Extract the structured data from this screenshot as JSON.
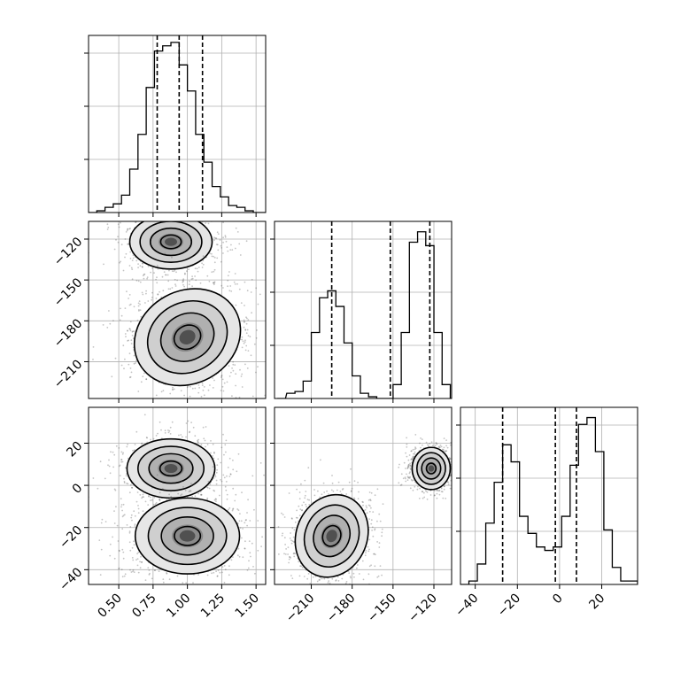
{
  "chart_data": [
    {
      "type": "histogram",
      "panel": "1d-param-0",
      "x": [
        0.28,
        0.34,
        0.4,
        0.46,
        0.52,
        0.58,
        0.64,
        0.7,
        0.76,
        0.82,
        0.88,
        0.94,
        1.0,
        1.06,
        1.12,
        1.18,
        1.24,
        1.3,
        1.36,
        1.42,
        1.48,
        1.54
      ],
      "values": [
        0,
        1,
        3,
        5,
        10,
        25,
        45,
        72,
        93,
        96,
        98,
        85,
        70,
        45,
        29,
        15,
        9,
        4,
        3,
        1,
        0,
        0
      ],
      "xlim": [
        0.28,
        1.57
      ],
      "ylim": [
        0,
        102
      ],
      "quantiles": [
        0.78,
        0.94,
        1.11
      ],
      "grid": true,
      "xticks": [],
      "yticks": []
    },
    {
      "type": "histogram",
      "panel": "1d-param-1",
      "x": [
        -235,
        -228,
        -222,
        -216,
        -210,
        -204,
        -198,
        -192,
        -186,
        -180,
        -174,
        -168,
        -162,
        -156,
        -150,
        -144,
        -138,
        -132,
        -126,
        -120,
        -114,
        -108
      ],
      "values": [
        0,
        3,
        4,
        10,
        38,
        58,
        62,
        53,
        32,
        13,
        3,
        1,
        0,
        0,
        8,
        38,
        90,
        96,
        88,
        38,
        8,
        0
      ],
      "xlim": [
        -237,
        -107
      ],
      "ylim": [
        0,
        102
      ],
      "quantiles": [
        -195,
        -152,
        -123
      ],
      "grid": true,
      "xticks": [],
      "yticks": []
    },
    {
      "type": "histogram",
      "panel": "1d-param-2",
      "x": [
        -47,
        -43,
        -39,
        -35,
        -31,
        -27,
        -23,
        -19,
        -15,
        -11,
        -7,
        -3,
        1,
        5,
        9,
        13,
        17,
        21,
        25,
        29,
        33,
        37
      ],
      "values": [
        0,
        1,
        6,
        18,
        30,
        41,
        36,
        20,
        15,
        11,
        10,
        11,
        20,
        35,
        47,
        49,
        39,
        16,
        5,
        1,
        1,
        0
      ],
      "xlim": [
        -47,
        37
      ],
      "ylim": [
        0,
        52
      ],
      "quantiles": [
        -27,
        -2,
        8
      ],
      "grid": true,
      "xticks": [
        "−40",
        "−20",
        "0",
        "20"
      ],
      "yticks": []
    },
    {
      "type": "contour",
      "panel": "2d-param-0-vs-param-1",
      "xlim": [
        0.28,
        1.57
      ],
      "ylim": [
        -237,
        -107
      ],
      "clusters": [
        {
          "center": [
            0.88,
            -122
          ],
          "spread": [
            0.15,
            10
          ],
          "rotation": 0,
          "density": "high"
        },
        {
          "center": [
            1.0,
            -192
          ],
          "spread": [
            0.2,
            17
          ],
          "rotation": -0.5,
          "density": "medium"
        }
      ],
      "contour_levels": [
        0.5,
        1.0,
        1.5,
        2.0
      ],
      "yticks": [
        "−120",
        "−150",
        "−180",
        "−210"
      ],
      "xticks": []
    },
    {
      "type": "contour",
      "panel": "2d-param-0-vs-param-2",
      "xlim": [
        0.28,
        1.57
      ],
      "ylim": [
        -47,
        37
      ],
      "clusters": [
        {
          "center": [
            0.88,
            8
          ],
          "spread": [
            0.16,
            7
          ],
          "rotation": 0,
          "density": "high"
        },
        {
          "center": [
            1.0,
            -24
          ],
          "spread": [
            0.19,
            9
          ],
          "rotation": 0,
          "density": "medium"
        }
      ],
      "contour_levels": [
        0.5,
        1.0,
        1.5,
        2.0
      ],
      "xticks": [
        "0.50",
        "0.75",
        "1.00",
        "1.25",
        "1.50"
      ],
      "yticks": [
        "20",
        "0",
        "−20",
        "−40"
      ]
    },
    {
      "type": "contour",
      "panel": "2d-param-1-vs-param-2",
      "xlim": [
        -237,
        -107
      ],
      "ylim": [
        -47,
        37
      ],
      "clusters": [
        {
          "center": [
            -122,
            8
          ],
          "spread": [
            7,
            5
          ],
          "rotation": 0,
          "density": "high"
        },
        {
          "center": [
            -195,
            -24
          ],
          "spread": [
            13,
            10
          ],
          "rotation": 0.4,
          "density": "medium"
        }
      ],
      "contour_levels": [
        0.5,
        1.0,
        1.5,
        2.0
      ],
      "xticks": [
        "−210",
        "−180",
        "−150",
        "−120"
      ],
      "yticks": []
    }
  ]
}
